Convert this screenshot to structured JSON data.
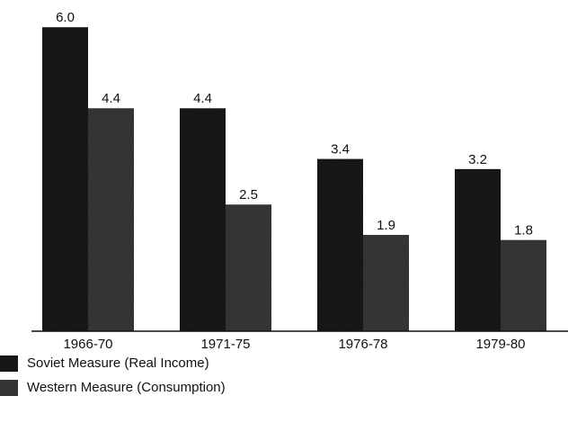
{
  "chart_data": {
    "type": "bar",
    "categories": [
      "1966-70",
      "1971-75",
      "1976-78",
      "1979-80"
    ],
    "series": [
      {
        "name": "Soviet Measure (Real Income)",
        "color": "#1c1c1c",
        "values": [
          6.0,
          4.4,
          3.4,
          3.2
        ],
        "value_labels": [
          "6.0",
          "4.4",
          "3.4",
          "3.2"
        ]
      },
      {
        "name": "Western Measure (Consumption)",
        "color": "#3c3c3c",
        "values": [
          4.4,
          2.5,
          1.9,
          1.8
        ],
        "value_labels": [
          "4.4",
          "2.5",
          "1.9",
          "1.8"
        ]
      }
    ]
  }
}
